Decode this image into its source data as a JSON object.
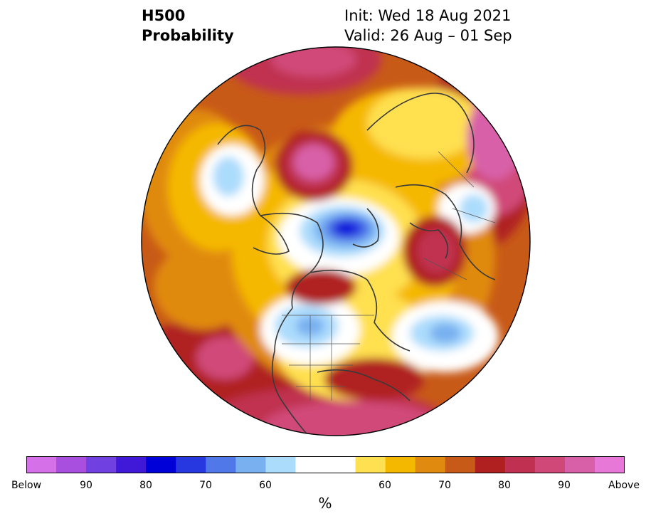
{
  "title": {
    "left_line1": "H500",
    "left_line2": "Probability",
    "right_line1": "Init: Wed 18 Aug 2021",
    "right_line2": "Valid: 26 Aug – 01 Sep"
  },
  "colorbar": {
    "unit": "%",
    "colors": [
      "#d670e8",
      "#a84fe0",
      "#7040e0",
      "#4018d8",
      "#0000d8",
      "#2838e0",
      "#5078e8",
      "#78b0f0",
      "#acdcfc",
      "#ffffff",
      "#ffffff",
      "#ffe050",
      "#f5b800",
      "#e08a10",
      "#c85a18",
      "#b02020",
      "#c03050",
      "#d04878",
      "#d860a8",
      "#e878d8"
    ],
    "tick_labels": [
      "Below",
      "90",
      "80",
      "70",
      "60",
      "60",
      "70",
      "80",
      "90",
      "Above"
    ]
  },
  "map": {
    "projection": "north-polar-stereographic",
    "features": [
      "coastlines",
      "country-borders",
      "us-state-borders"
    ],
    "highlights": [
      "Below-normal center over Arctic / north of Greenland",
      "Above-normal centers over Siberia, Europe, Alaska-Bering, NE Pacific, SE US"
    ]
  }
}
